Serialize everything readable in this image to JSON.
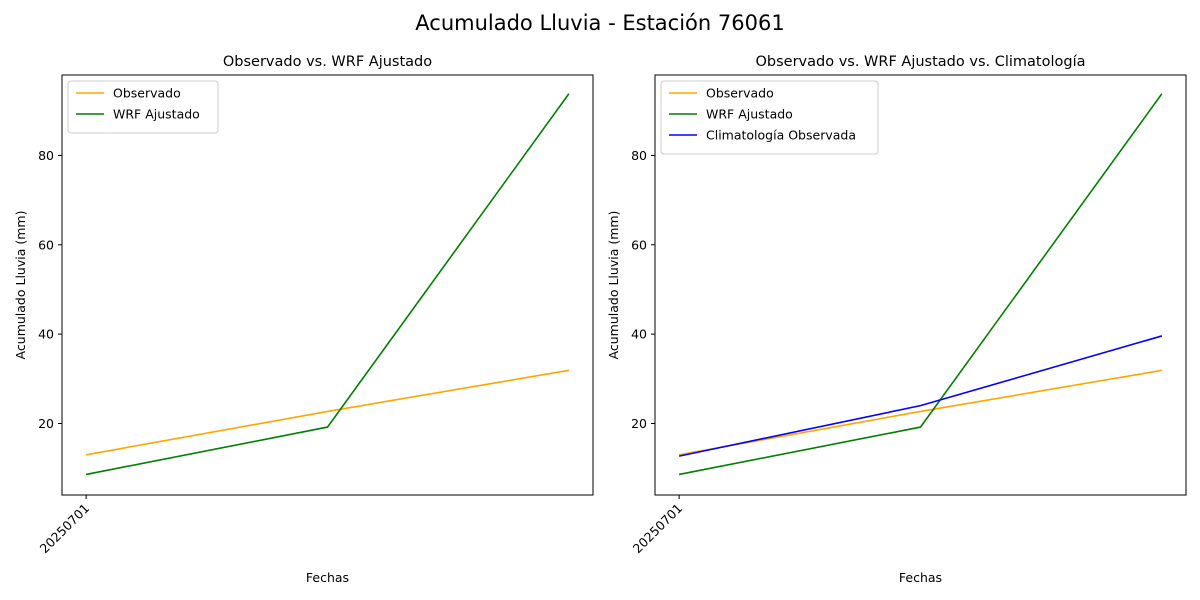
{
  "figure": {
    "title": "Acumulado Lluvia - Estación 76061"
  },
  "chart_data": [
    {
      "type": "line",
      "title": "Observado vs. WRF Ajustado",
      "xlabel": "Fechas",
      "ylabel": "Acumulado Lluvia (mm)",
      "x_tick_labels": [
        "20250701"
      ],
      "y_ticks": [
        20,
        40,
        60,
        80
      ],
      "ylim": [
        4,
        98
      ],
      "x": [
        0,
        1,
        2
      ],
      "legend": "top-left",
      "grid": false,
      "series": [
        {
          "name": "Observado",
          "color": "#FFA500",
          "values": [
            13.0,
            22.7,
            31.9
          ]
        },
        {
          "name": "WRF Ajustado",
          "color": "#008000",
          "values": [
            8.6,
            19.2,
            93.8
          ]
        }
      ]
    },
    {
      "type": "line",
      "title": "Observado vs. WRF Ajustado vs. Climatología",
      "xlabel": "Fechas",
      "ylabel": "Acumulado Lluvia (mm)",
      "x_tick_labels": [
        "20250701"
      ],
      "y_ticks": [
        20,
        40,
        60,
        80
      ],
      "ylim": [
        4,
        98
      ],
      "x": [
        0,
        1,
        2
      ],
      "legend": "top-left",
      "grid": false,
      "series": [
        {
          "name": "Observado",
          "color": "#FFA500",
          "values": [
            13.0,
            22.7,
            31.9
          ]
        },
        {
          "name": "WRF Ajustado",
          "color": "#008000",
          "values": [
            8.6,
            19.2,
            93.8
          ]
        },
        {
          "name": "Climatología Observada",
          "color": "#0000FF",
          "values": [
            12.7,
            24.0,
            39.6
          ]
        }
      ]
    }
  ]
}
